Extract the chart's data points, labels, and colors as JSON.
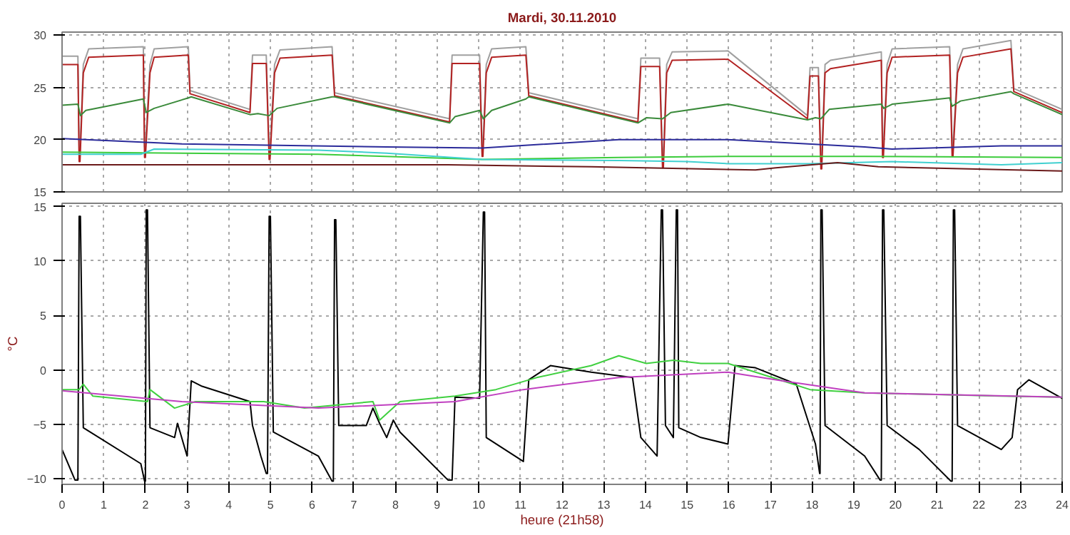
{
  "chart_data": [
    {
      "type": "line",
      "title": "Mardi, 30.11.2010",
      "xlim": [
        0,
        24
      ],
      "xticks": [
        0,
        1,
        2,
        3,
        4,
        5,
        6,
        7,
        8,
        9,
        10,
        11,
        12,
        13,
        14,
        15,
        16,
        17,
        18,
        19,
        20,
        21,
        22,
        23,
        24
      ],
      "ylim": [
        15,
        30.3
      ],
      "yticks": [
        15,
        20,
        25,
        30
      ],
      "grid": true,
      "tick_labels": "y",
      "series": [
        {
          "color": "#a0a0a0",
          "x": [
            0,
            0.38,
            0.41,
            0.43,
            0.51,
            0.64,
            1.95,
            1.98,
            2.0,
            2.11,
            2.21,
            3.03,
            3.07,
            4.51,
            4.57,
            4.9,
            4.97,
            4.99,
            5.1,
            5.23,
            6.48,
            6.54,
            9.3,
            9.36,
            10.02,
            10.08,
            10.1,
            10.18,
            10.31,
            11.13,
            11.2,
            13.82,
            13.89,
            14.34,
            14.41,
            14.43,
            14.51,
            14.64,
            15.98,
            17.89,
            17.95,
            18.15,
            18.21,
            18.23,
            18.31,
            18.44,
            19.66,
            19.69,
            19.71,
            19.8,
            19.92,
            21.3,
            21.36,
            21.38,
            21.49,
            21.62,
            22.77,
            22.84,
            24.0
          ],
          "values": [
            28.0,
            28.0,
            18.9,
            18.9,
            27.2,
            28.7,
            28.9,
            19.3,
            19.3,
            27.2,
            28.7,
            28.9,
            24.7,
            22.9,
            28.1,
            28.1,
            19.1,
            19.1,
            27.2,
            28.6,
            28.9,
            24.5,
            22.0,
            28.1,
            28.1,
            19.4,
            19.4,
            27.2,
            28.7,
            28.9,
            24.5,
            22.0,
            27.8,
            27.8,
            18.3,
            18.3,
            27.2,
            28.4,
            28.5,
            22.3,
            26.9,
            26.9,
            18.2,
            18.2,
            27.2,
            27.6,
            28.4,
            19.3,
            19.3,
            27.2,
            28.7,
            28.9,
            19.4,
            19.4,
            27.2,
            28.7,
            29.5,
            24.9,
            22.9
          ]
        },
        {
          "color": "#b22222",
          "x": [
            0,
            0.38,
            0.41,
            0.43,
            0.51,
            0.64,
            1.95,
            1.98,
            2.0,
            2.11,
            2.21,
            3.03,
            3.07,
            4.51,
            4.57,
            4.9,
            4.97,
            4.99,
            5.1,
            5.23,
            6.48,
            6.54,
            9.3,
            9.36,
            10.02,
            10.08,
            10.1,
            10.18,
            10.31,
            11.13,
            11.2,
            13.82,
            13.89,
            14.34,
            14.41,
            14.43,
            14.51,
            14.64,
            15.98,
            17.89,
            17.95,
            18.15,
            18.21,
            18.23,
            18.31,
            18.44,
            19.66,
            19.69,
            19.71,
            19.8,
            19.92,
            21.3,
            21.36,
            21.38,
            21.49,
            21.62,
            22.77,
            22.84,
            24.0
          ],
          "values": [
            27.2,
            27.2,
            17.9,
            17.9,
            26.4,
            27.9,
            28.1,
            18.3,
            18.3,
            26.4,
            27.9,
            28.1,
            24.4,
            22.6,
            27.3,
            27.3,
            18.1,
            18.1,
            26.4,
            27.8,
            28.1,
            24.2,
            21.7,
            27.3,
            27.3,
            18.4,
            18.4,
            26.4,
            27.9,
            28.1,
            24.2,
            21.7,
            27.0,
            27.0,
            17.3,
            17.3,
            26.4,
            27.6,
            27.7,
            22.0,
            26.1,
            26.1,
            17.2,
            17.2,
            26.4,
            26.8,
            27.6,
            18.3,
            18.3,
            26.4,
            27.9,
            28.1,
            18.4,
            18.4,
            26.4,
            27.9,
            28.7,
            24.6,
            22.6
          ]
        },
        {
          "color": "#3a8a3a",
          "x": [
            0,
            0.38,
            0.44,
            0.57,
            1.95,
            2.02,
            2.21,
            3.03,
            3.1,
            4.51,
            4.7,
            4.97,
            5.16,
            6.48,
            6.54,
            9.3,
            9.43,
            10.02,
            10.11,
            10.31,
            11.13,
            11.2,
            13.82,
            14.02,
            14.41,
            14.61,
            15.98,
            17.89,
            18.08,
            18.21,
            18.41,
            19.66,
            19.72,
            19.92,
            21.3,
            21.36,
            21.56,
            22.77,
            22.84,
            24.0
          ],
          "values": [
            23.3,
            23.4,
            22.3,
            22.8,
            23.9,
            22.6,
            23.0,
            24.0,
            24.1,
            22.4,
            22.5,
            22.3,
            23.0,
            24.1,
            24.1,
            21.6,
            22.2,
            22.8,
            22.0,
            22.8,
            23.9,
            24.1,
            21.6,
            22.1,
            22.0,
            22.6,
            23.4,
            21.9,
            22.1,
            22.0,
            22.9,
            23.4,
            23.0,
            23.4,
            24.0,
            23.2,
            23.7,
            24.6,
            24.4,
            22.4
          ]
        },
        {
          "color": "#2b2b9a",
          "x": [
            0,
            2.87,
            7.79,
            10.08,
            13.36,
            15.98,
            19.26,
            19.92,
            22.54,
            24.0
          ],
          "values": [
            20.1,
            19.6,
            19.3,
            19.2,
            20.0,
            20.0,
            19.3,
            19.1,
            19.4,
            19.4
          ]
        },
        {
          "color": "#3ccc3c",
          "x": [
            0,
            6.15,
            10.08,
            13.36,
            15.98,
            19.26,
            24.0
          ],
          "values": [
            18.8,
            18.6,
            18.1,
            18.3,
            18.4,
            18.4,
            18.3
          ]
        },
        {
          "color": "#40d0d0",
          "x": [
            0,
            1.89,
            2.21,
            6.15,
            7.79,
            10.08,
            13.36,
            15.0,
            15.98,
            17.95,
            19.92,
            22.54,
            24.0
          ],
          "values": [
            18.6,
            18.6,
            19.1,
            19.0,
            18.7,
            18.1,
            18.0,
            17.9,
            17.7,
            17.7,
            17.9,
            17.6,
            17.8
          ]
        },
        {
          "color": "#6b1a1a",
          "x": [
            0,
            9.26,
            12.7,
            16.64,
            17.13,
            18.61,
            19.59,
            24.0
          ],
          "values": [
            17.6,
            17.6,
            17.4,
            17.1,
            17.3,
            17.8,
            17.4,
            17.0
          ]
        }
      ]
    },
    {
      "type": "line",
      "xlabel": "heure (21h58)",
      "ylabel": "°C",
      "xlim": [
        0,
        24
      ],
      "xticks": [
        0,
        1,
        2,
        3,
        4,
        5,
        6,
        7,
        8,
        9,
        10,
        11,
        12,
        13,
        14,
        15,
        16,
        17,
        18,
        19,
        20,
        21,
        22,
        23,
        24
      ],
      "ylim": [
        -10.5,
        15.3
      ],
      "yticks": [
        -10,
        -5,
        0,
        5,
        10,
        15
      ],
      "grid": true,
      "series": [
        {
          "color": "#000000",
          "x": [
            0,
            0.31,
            0.38,
            0.41,
            0.44,
            0.51,
            1.89,
            1.98,
            2.0,
            2.02,
            2.05,
            2.11,
            2.7,
            2.77,
            2.87,
            3.0,
            3.1,
            3.36,
            4.51,
            4.57,
            4.77,
            4.9,
            4.93,
            4.97,
            5.0,
            5.07,
            6.15,
            6.48,
            6.51,
            6.54,
            6.57,
            6.64,
            7.3,
            7.46,
            7.62,
            7.79,
            7.95,
            8.11,
            9.26,
            9.36,
            9.43,
            10.02,
            10.11,
            10.14,
            10.18,
            11.07,
            11.2,
            11.72,
            12.7,
            13.69,
            13.89,
            14.28,
            14.38,
            14.41,
            14.48,
            14.67,
            14.74,
            14.77,
            14.8,
            15.33,
            15.98,
            16.15,
            16.64,
            17.62,
            18.08,
            18.18,
            18.19,
            18.21,
            18.24,
            18.31,
            19.26,
            19.63,
            19.66,
            19.69,
            19.72,
            19.8,
            20.57,
            21.33,
            21.36,
            21.39,
            21.42,
            21.49,
            22.54,
            22.8,
            22.93,
            23.2,
            24.0
          ],
          "values": [
            -7.3,
            -10.1,
            -10.1,
            14.1,
            14.1,
            -5.3,
            -8.6,
            -10.2,
            -10.2,
            14.7,
            14.7,
            -5.3,
            -6.2,
            -4.9,
            -6.2,
            -7.9,
            -1.0,
            -1.5,
            -2.9,
            -5.1,
            -7.9,
            -9.5,
            -9.5,
            14.1,
            14.1,
            -5.7,
            -7.9,
            -10.2,
            -10.2,
            13.8,
            13.8,
            -5.1,
            -5.1,
            -3.5,
            -4.9,
            -6.2,
            -4.6,
            -5.7,
            -10.1,
            -10.1,
            -2.5,
            -2.6,
            14.5,
            14.5,
            -6.2,
            -8.4,
            -0.9,
            0.4,
            -0.2,
            -0.7,
            -6.2,
            -7.9,
            14.7,
            14.7,
            -5.1,
            -6.2,
            14.7,
            14.7,
            -5.3,
            -6.2,
            -6.8,
            0.4,
            0.2,
            -1.3,
            -6.8,
            -9.5,
            -9.5,
            14.7,
            14.7,
            -5.1,
            -7.9,
            -10.1,
            -10.1,
            14.7,
            14.7,
            -5.1,
            -7.3,
            -10.2,
            -10.2,
            14.7,
            14.7,
            -5.1,
            -7.3,
            -6.2,
            -1.8,
            -0.9,
            -2.6
          ]
        },
        {
          "color": "#40d040",
          "x": [
            0,
            0.41,
            0.51,
            0.74,
            2.05,
            2.11,
            2.7,
            3.2,
            4.51,
            4.84,
            5.82,
            7.46,
            7.62,
            8.11,
            9.43,
            10.41,
            11.39,
            12.7,
            13.36,
            14.02,
            14.67,
            15.33,
            15.98,
            16.64,
            17.3,
            17.95,
            19.26,
            22.54,
            24.0
          ],
          "values": [
            -1.8,
            -1.8,
            -1.3,
            -2.4,
            -2.9,
            -1.8,
            -3.5,
            -2.9,
            -2.9,
            -2.9,
            -3.5,
            -2.9,
            -4.6,
            -2.9,
            -2.4,
            -1.8,
            -0.7,
            0.4,
            1.3,
            0.6,
            0.9,
            0.6,
            0.6,
            -0.2,
            -1.0,
            -1.8,
            -2.1,
            -2.4,
            -2.5
          ]
        },
        {
          "color": "#c040c0",
          "x": [
            0,
            2.87,
            6.15,
            9.43,
            11.07,
            13.36,
            15.98,
            17.3,
            19.26,
            24.0
          ],
          "values": [
            -1.9,
            -2.9,
            -3.5,
            -2.9,
            -1.8,
            -0.7,
            -0.2,
            -1.0,
            -2.1,
            -2.5
          ]
        }
      ]
    }
  ]
}
